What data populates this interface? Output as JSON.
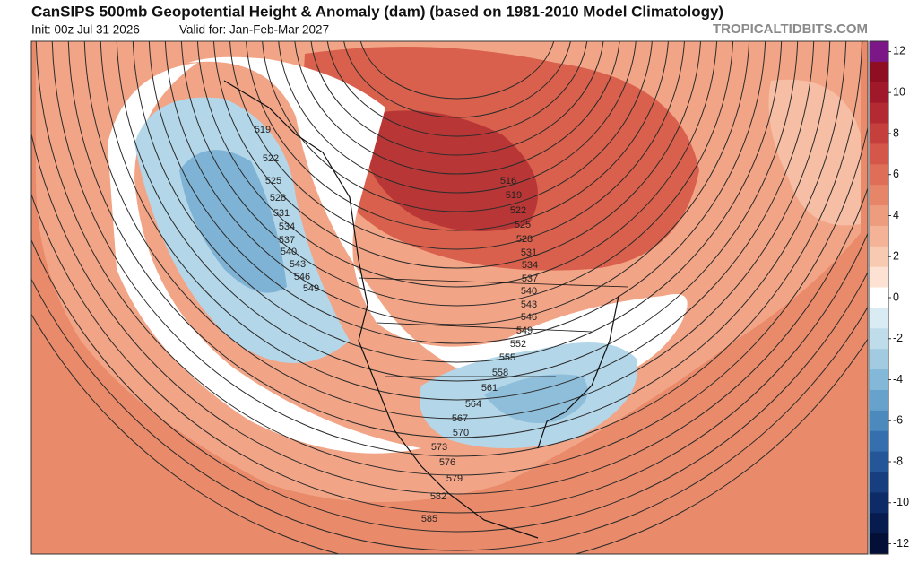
{
  "header": {
    "title": "CanSIPS 500mb Geopotential Height & Anomaly (dam) (based on 1981-2010 Model Climatology)",
    "init": "Init: 00z Jul 31 2026",
    "valid": "Valid for: Jan-Feb-Mar 2027",
    "credit": "TROPICALTIDBITS.COM"
  },
  "contour_labels": [
    519,
    522,
    525,
    528,
    531,
    534,
    537,
    540,
    543,
    546,
    549,
    516,
    519,
    522,
    525,
    528,
    531,
    534,
    537,
    540,
    543,
    546,
    549,
    552,
    555,
    558,
    561,
    564,
    567,
    570,
    573,
    576,
    579,
    582,
    585
  ],
  "colorbar": {
    "lim": [
      -12.5,
      12.5
    ],
    "ticks": [
      12,
      10,
      8,
      6,
      4,
      2,
      0,
      -2,
      -4,
      -6,
      -8,
      -10,
      -12
    ],
    "colors": [
      "#7b1787",
      "#8e0f22",
      "#a0192a",
      "#b32a32",
      "#c53f3d",
      "#d4574a",
      "#df6e58",
      "#e78569",
      "#ee9c7e",
      "#f4b396",
      "#f9cab2",
      "#fde2d4",
      "#ffffff",
      "#d9ebf3",
      "#bfdceb",
      "#a2cbe2",
      "#84b8d8",
      "#66a2cb",
      "#4c89bd",
      "#366fad",
      "#245698",
      "#173f80",
      "#0d2c67",
      "#071c4e",
      "#030f36"
    ]
  }
}
